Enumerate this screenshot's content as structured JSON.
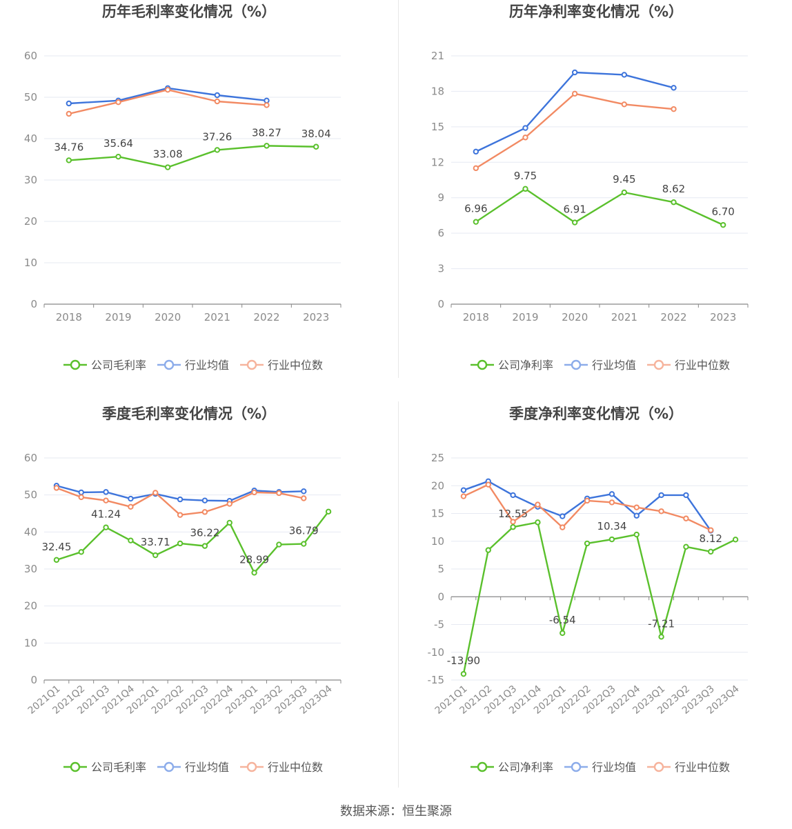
{
  "colors": {
    "company": "#5ac02c",
    "avg": "#3d74db",
    "median": "#f28a63",
    "avg_legend": "#8cacea",
    "median_legend": "#f6b39c",
    "grid": "#e6e9f2",
    "axis": "#888888",
    "tick": "#8a8a8a",
    "title": "#444444",
    "label": "#444444"
  },
  "source": "数据来源：恒生聚源",
  "chart_data": [
    {
      "type": "line",
      "title": "历年毛利率变化情况（%）",
      "x": [
        "2018",
        "2019",
        "2020",
        "2021",
        "2022",
        "2023"
      ],
      "ylim": [
        0,
        60
      ],
      "yticks": [
        0,
        10,
        20,
        30,
        40,
        50,
        60
      ],
      "series": [
        {
          "name": "公司毛利率",
          "role": "company",
          "values": [
            34.76,
            35.64,
            33.08,
            37.26,
            38.27,
            38.04
          ],
          "labels": [
            "34.76",
            "35.64",
            "33.08",
            "37.26",
            "38.27",
            "38.04"
          ]
        },
        {
          "name": "行业均值",
          "role": "avg",
          "values": [
            48.5,
            49.2,
            52.2,
            50.5,
            49.2,
            null
          ]
        },
        {
          "name": "行业中位数",
          "role": "median",
          "values": [
            46.0,
            48.8,
            51.8,
            49.0,
            48.1,
            null
          ]
        }
      ],
      "legend": "bottom-center"
    },
    {
      "type": "line",
      "title": "历年净利率变化情况（%）",
      "x": [
        "2018",
        "2019",
        "2020",
        "2021",
        "2022",
        "2023"
      ],
      "ylim": [
        0,
        21
      ],
      "yticks": [
        0,
        3,
        6,
        9,
        12,
        15,
        18,
        21
      ],
      "series": [
        {
          "name": "公司净利率",
          "role": "company",
          "values": [
            6.96,
            9.75,
            6.91,
            9.45,
            8.62,
            6.7
          ],
          "labels": [
            "6.96",
            "9.75",
            "6.91",
            "9.45",
            "8.62",
            "6.70"
          ]
        },
        {
          "name": "行业均值",
          "role": "avg",
          "values": [
            12.9,
            14.9,
            19.6,
            19.4,
            18.3,
            null
          ]
        },
        {
          "name": "行业中位数",
          "role": "median",
          "values": [
            11.5,
            14.1,
            17.8,
            16.9,
            16.5,
            null
          ]
        }
      ],
      "legend": "bottom-center"
    },
    {
      "type": "line",
      "title": "季度毛利率变化情况（%）",
      "x": [
        "2021Q1",
        "2021Q2",
        "2021Q3",
        "2021Q4",
        "2022Q1",
        "2022Q2",
        "2022Q3",
        "2022Q4",
        "2023Q1",
        "2023Q2",
        "2023Q3",
        "2023Q4"
      ],
      "ylim": [
        0,
        60
      ],
      "yticks": [
        0,
        10,
        20,
        30,
        40,
        50,
        60
      ],
      "series": [
        {
          "name": "公司毛利率",
          "role": "company",
          "values": [
            32.45,
            34.6,
            41.24,
            37.7,
            33.71,
            36.9,
            36.22,
            42.5,
            28.99,
            36.6,
            36.79,
            45.5
          ],
          "labels": [
            "32.45",
            "",
            "41.24",
            "",
            "33.71",
            "",
            "36.22",
            "",
            "28.99",
            "",
            "36.79",
            ""
          ]
        },
        {
          "name": "行业均值",
          "role": "avg",
          "values": [
            52.5,
            50.7,
            50.8,
            49.0,
            50.3,
            48.8,
            48.5,
            48.4,
            51.2,
            50.8,
            51.0,
            null
          ]
        },
        {
          "name": "行业中位数",
          "role": "median",
          "values": [
            51.9,
            49.4,
            48.5,
            46.8,
            50.6,
            44.6,
            45.4,
            47.6,
            50.7,
            50.5,
            49.1,
            null
          ]
        }
      ],
      "legend": "bottom-center"
    },
    {
      "type": "line",
      "title": "季度净利率变化情况（%）",
      "x": [
        "2021Q1",
        "2021Q2",
        "2021Q3",
        "2021Q4",
        "2022Q1",
        "2022Q2",
        "2022Q3",
        "2022Q4",
        "2023Q1",
        "2023Q2",
        "2023Q3",
        "2023Q4"
      ],
      "ylim": [
        -15,
        25
      ],
      "yticks": [
        -15,
        -10,
        -5,
        0,
        5,
        10,
        15,
        20,
        25
      ],
      "series": [
        {
          "name": "公司净利率",
          "role": "company",
          "values": [
            -13.9,
            8.4,
            12.55,
            13.4,
            -6.54,
            9.6,
            10.34,
            11.2,
            -7.21,
            9.0,
            8.12,
            10.3
          ],
          "labels": [
            "-13.90",
            "",
            "12.55",
            "",
            "-6.54",
            "",
            "10.34",
            "",
            "-7.21",
            "",
            "8.12",
            ""
          ]
        },
        {
          "name": "行业均值",
          "role": "avg",
          "values": [
            19.2,
            20.8,
            18.3,
            16.2,
            14.5,
            17.7,
            18.5,
            14.6,
            18.3,
            18.3,
            11.9,
            null
          ]
        },
        {
          "name": "行业中位数",
          "role": "median",
          "values": [
            18.1,
            20.2,
            13.5,
            16.6,
            12.5,
            17.3,
            17.0,
            16.1,
            15.4,
            14.1,
            12.0,
            null
          ]
        }
      ],
      "legend": "bottom-center"
    }
  ]
}
